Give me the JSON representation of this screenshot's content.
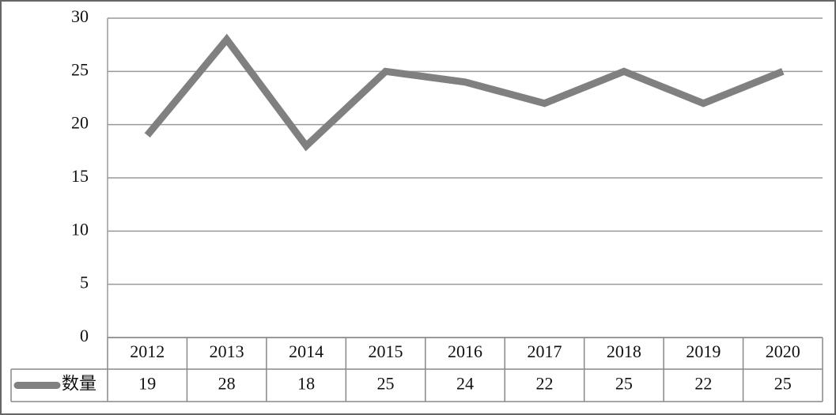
{
  "chart_data": {
    "type": "line",
    "categories": [
      "2012",
      "2013",
      "2014",
      "2015",
      "2016",
      "2017",
      "2018",
      "2019",
      "2020"
    ],
    "series": [
      {
        "name": "数量",
        "color": "#808080",
        "values": [
          19,
          28,
          18,
          25,
          24,
          22,
          25,
          22,
          25
        ]
      }
    ],
    "ylim": [
      0,
      30
    ],
    "yticks": [
      0,
      5,
      10,
      15,
      20,
      25,
      30
    ],
    "grid": true,
    "data_table": true
  }
}
